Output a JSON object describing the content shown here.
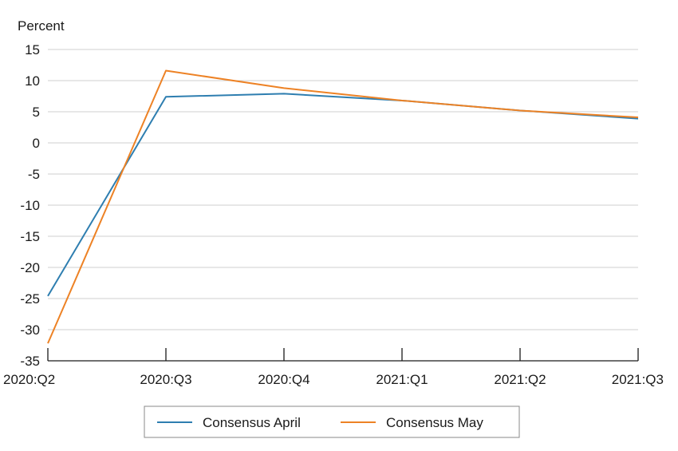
{
  "chart_data": {
    "type": "line",
    "ylabel": "Percent",
    "xlabel": "",
    "categories": [
      "2020:Q2",
      "2020:Q3",
      "2020:Q4",
      "2021:Q1",
      "2021:Q2",
      "2021:Q3"
    ],
    "ylim": [
      -35,
      15
    ],
    "yticks": [
      15,
      10,
      5,
      0,
      -5,
      -10,
      -15,
      -20,
      -25,
      -30,
      -35
    ],
    "grid": true,
    "legend_position": "bottom",
    "series": [
      {
        "name": "Consensus April",
        "color": "#2e7eb0",
        "values": [
          -24.6,
          7.4,
          7.9,
          6.8,
          5.2,
          3.9
        ]
      },
      {
        "name": "Consensus May",
        "color": "#ed8225",
        "values": [
          -32.2,
          11.6,
          8.8,
          6.8,
          5.2,
          4.1
        ]
      }
    ]
  }
}
